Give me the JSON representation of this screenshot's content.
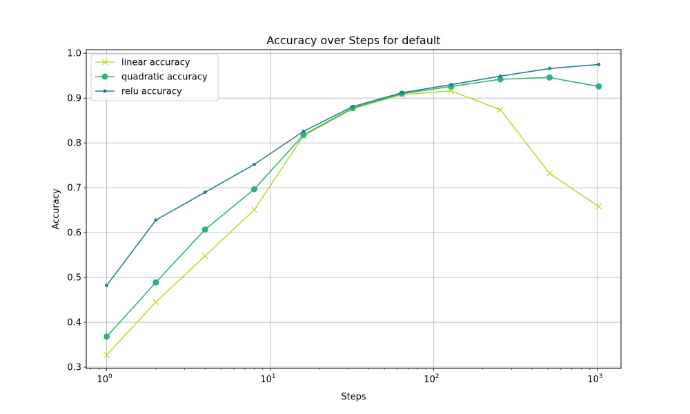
{
  "chart_data": {
    "type": "line",
    "title": "Accuracy over Steps for default",
    "xlabel": "Steps",
    "ylabel": "Accuracy",
    "xscale": "log",
    "xlim": [
      0.75,
      1400
    ],
    "ylim": [
      0.297,
      1.008
    ],
    "grid": true,
    "legend_position": "top-left",
    "x": [
      1,
      2,
      4,
      8,
      16,
      32,
      64,
      128,
      256,
      512,
      1024
    ],
    "xticks": [
      {
        "value": 1,
        "base": "10",
        "exp": "0"
      },
      {
        "value": 10,
        "base": "10",
        "exp": "1"
      },
      {
        "value": 100,
        "base": "10",
        "exp": "2"
      },
      {
        "value": 1000,
        "base": "10",
        "exp": "3"
      }
    ],
    "yticks": [
      {
        "value": 0.3,
        "label": "0.3"
      },
      {
        "value": 0.4,
        "label": "0.4"
      },
      {
        "value": 0.5,
        "label": "0.5"
      },
      {
        "value": 0.6,
        "label": "0.6"
      },
      {
        "value": 0.7,
        "label": "0.7"
      },
      {
        "value": 0.8,
        "label": "0.8"
      },
      {
        "value": 0.9,
        "label": "0.9"
      },
      {
        "value": 1.0,
        "label": "1.0"
      }
    ],
    "series": [
      {
        "name": "linear accuracy",
        "color": "#b5de2b",
        "marker": "x",
        "values": [
          0.327,
          0.445,
          0.548,
          0.651,
          0.816,
          0.876,
          0.908,
          0.916,
          0.874,
          0.732,
          0.658
        ]
      },
      {
        "name": "quadratic accuracy",
        "color": "#2db27d",
        "marker": "circle",
        "values": [
          0.368,
          0.489,
          0.607,
          0.697,
          0.818,
          0.878,
          0.91,
          0.926,
          0.942,
          0.946,
          0.926
        ]
      },
      {
        "name": "relu accuracy",
        "color": "#277f8e",
        "marker": "dot",
        "values": [
          0.482,
          0.628,
          0.69,
          0.752,
          0.826,
          0.881,
          0.912,
          0.93,
          0.949,
          0.966,
          0.975
        ]
      }
    ]
  }
}
